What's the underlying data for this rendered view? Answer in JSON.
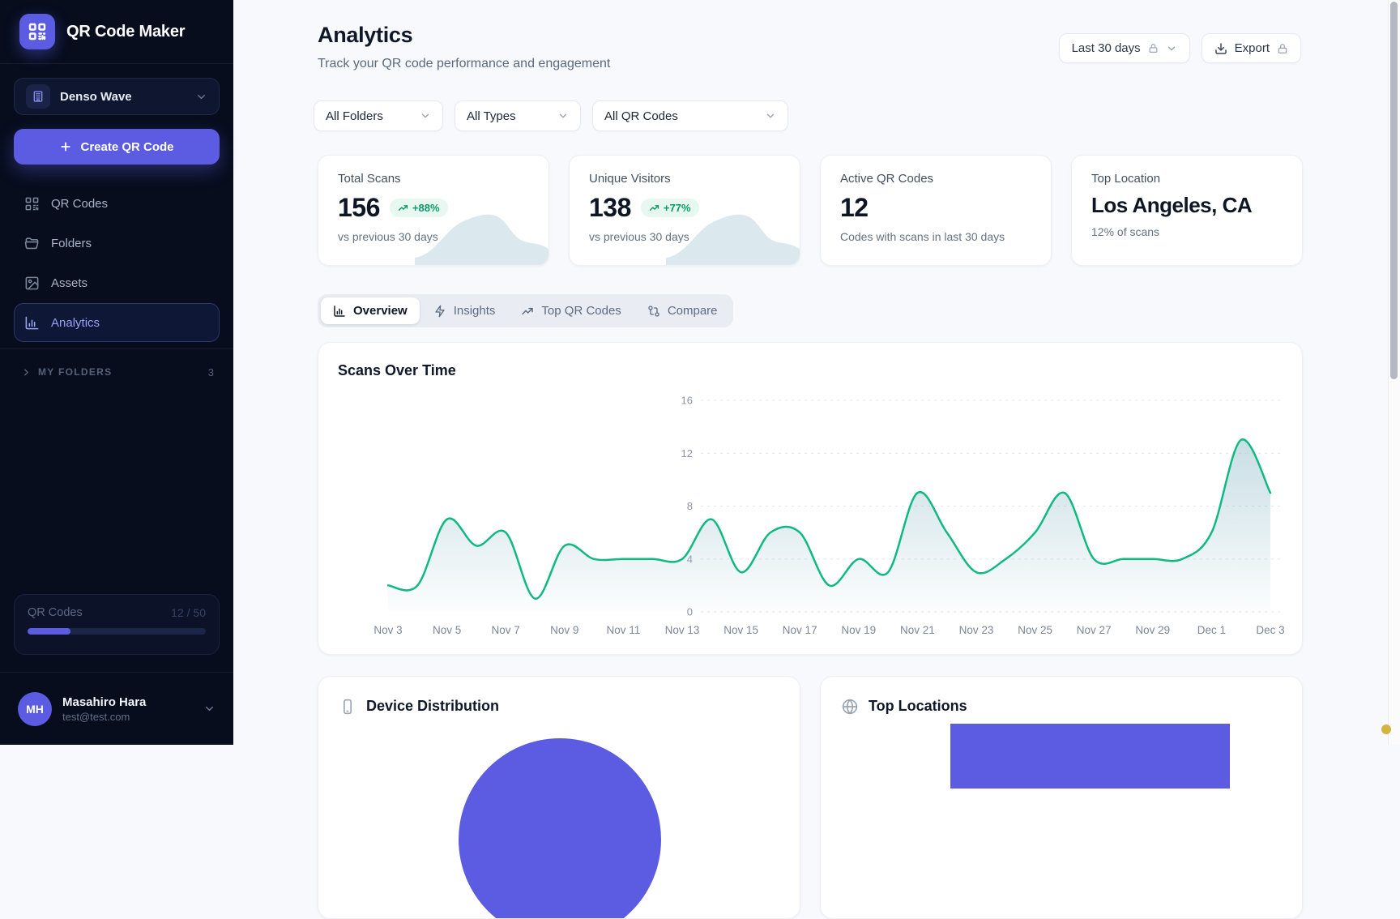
{
  "app": {
    "name": "QR Code Maker"
  },
  "colors": {
    "accent": "#5b5ce2",
    "sidebar_bg": "#070d1d",
    "badge_green_text": "#0a9a6c",
    "badge_green_bg": "#e7f8f0",
    "chart_line": "#10b981",
    "chart_fill": "#9cc3cf",
    "main_bg": "#f7f9fc"
  },
  "sidebar": {
    "workspace": {
      "name": "Denso Wave"
    },
    "create_label": "Create QR Code",
    "nav": [
      {
        "label": "QR Codes",
        "icon": "qr-code-icon",
        "active": false
      },
      {
        "label": "Folders",
        "icon": "folder-icon",
        "active": false
      },
      {
        "label": "Assets",
        "icon": "image-icon",
        "active": false
      },
      {
        "label": "Analytics",
        "icon": "bar-chart-icon",
        "active": true
      }
    ],
    "folders_section": {
      "label": "MY FOLDERS",
      "count": "3"
    },
    "usage": {
      "label": "QR Codes",
      "value": "12 / 50",
      "percent": 24
    },
    "user": {
      "initials": "MH",
      "name": "Masahiro Hara",
      "email": "test@test.com"
    }
  },
  "header": {
    "title": "Analytics",
    "subtitle": "Track your QR code performance and engagement",
    "date_range": "Last 30 days",
    "export_label": "Export"
  },
  "filters": [
    {
      "value": "All Folders"
    },
    {
      "value": "All Types"
    },
    {
      "value": "All QR Codes"
    }
  ],
  "stats": [
    {
      "label": "Total Scans",
      "value": "156",
      "badge": "+88%",
      "sub": "vs previous 30 days"
    },
    {
      "label": "Unique Visitors",
      "value": "138",
      "badge": "+77%",
      "sub": "vs previous 30 days"
    },
    {
      "label": "Active QR Codes",
      "value": "12",
      "sub": "Codes with scans in last 30 days"
    },
    {
      "label": "Top Location",
      "value": "Los Angeles, CA",
      "sub": "12% of scans"
    }
  ],
  "tabs": [
    {
      "label": "Overview",
      "icon": "bar-chart-icon",
      "active": true
    },
    {
      "label": "Insights",
      "icon": "zap-icon",
      "active": false
    },
    {
      "label": "Top QR Codes",
      "icon": "trending-up-icon",
      "active": false
    },
    {
      "label": "Compare",
      "icon": "git-compare-icon",
      "active": false
    }
  ],
  "chart_data": {
    "type": "area",
    "title": "Scans Over Time",
    "x": [
      "Nov 3",
      "Nov 4",
      "Nov 5",
      "Nov 6",
      "Nov 7",
      "Nov 8",
      "Nov 9",
      "Nov 10",
      "Nov 11",
      "Nov 12",
      "Nov 13",
      "Nov 14",
      "Nov 15",
      "Nov 16",
      "Nov 17",
      "Nov 18",
      "Nov 19",
      "Nov 20",
      "Nov 21",
      "Nov 22",
      "Nov 23",
      "Nov 24",
      "Nov 25",
      "Nov 26",
      "Nov 27",
      "Nov 28",
      "Nov 29",
      "Nov 30",
      "Dec 1",
      "Dec 2",
      "Dec 3"
    ],
    "values": [
      2,
      2,
      7,
      5,
      6,
      1,
      5,
      4,
      4,
      4,
      4,
      7,
      3,
      6,
      6,
      2,
      4,
      3,
      9,
      6,
      3,
      4,
      6,
      9,
      4,
      4,
      4,
      4,
      6,
      13,
      9
    ],
    "x_tick_every": 2,
    "yticks": [
      0,
      4,
      8,
      12,
      16
    ],
    "ylim": [
      0,
      16
    ],
    "grid": "dashed-horizontal",
    "legend": "none",
    "xlabel": "",
    "ylabel": ""
  },
  "bottom_cards": {
    "device": {
      "title": "Device Distribution"
    },
    "locations": {
      "title": "Top Locations"
    }
  }
}
